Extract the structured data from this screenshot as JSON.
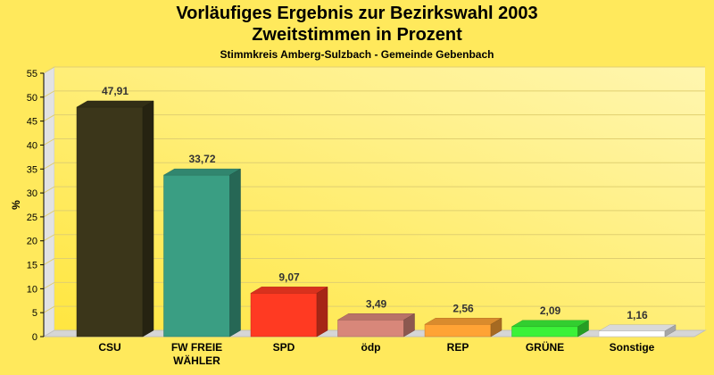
{
  "chart_data": {
    "type": "bar",
    "title": "Vorläufiges Ergebnis zur Bezirkswahl 2003",
    "subtitle": "Zweitstimmen in Prozent",
    "subsubtitle": "Stimmkreis Amberg-Sulzbach - Gemeinde Gebenbach",
    "ylabel": "%",
    "xlabel": "",
    "ylim": [
      0,
      55
    ],
    "yticks": [
      0,
      5,
      10,
      15,
      20,
      25,
      30,
      35,
      40,
      45,
      50,
      55
    ],
    "categories": [
      "CSU",
      "FW FREIE WÄHLER",
      "SPD",
      "ödp",
      "REP",
      "GRÜNE",
      "Sonstige"
    ],
    "category_lines": [
      [
        "CSU"
      ],
      [
        "FW FREIE",
        "WÄHLER"
      ],
      [
        "SPD"
      ],
      [
        "ödp"
      ],
      [
        "REP"
      ],
      [
        "GRÜNE"
      ],
      [
        "Sonstige"
      ]
    ],
    "values": [
      47.91,
      33.72,
      9.07,
      3.49,
      2.56,
      2.09,
      1.16
    ],
    "value_labels": [
      "47,91",
      "33,72",
      "9,07",
      "3,49",
      "2,56",
      "2,09",
      "1,16"
    ],
    "colors": [
      "#3b361a",
      "#3a9e83",
      "#ff3a22",
      "#d8877a",
      "#ffa335",
      "#3bf238",
      "#ffffff"
    ],
    "grid": true,
    "legend": "none"
  }
}
